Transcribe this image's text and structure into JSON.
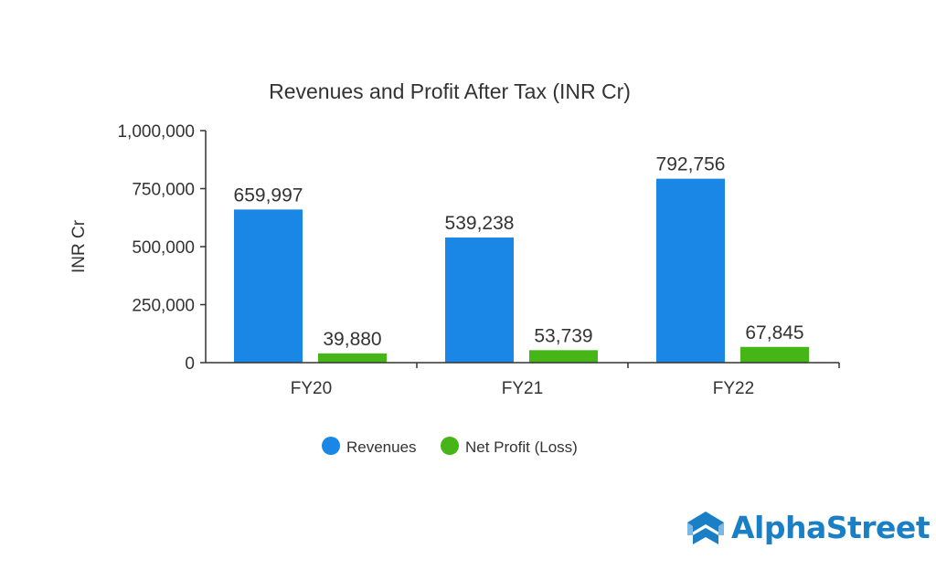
{
  "chart_data": {
    "type": "bar",
    "title": "Revenues and Profit After Tax (INR Cr)",
    "xlabel": "",
    "ylabel": "INR Cr",
    "ylim": [
      0,
      1000000
    ],
    "yticks": [
      "0",
      "250,000",
      "500,000",
      "750,000",
      "1,000,000"
    ],
    "ytick_values": [
      0,
      250000,
      500000,
      750000,
      1000000
    ],
    "categories": [
      "FY20",
      "FY21",
      "FY22"
    ],
    "series": [
      {
        "name": "Revenues",
        "color": "#1a87e6",
        "values": [
          659997,
          539238,
          792756
        ],
        "labels": [
          "659,997",
          "539,238",
          "792,756"
        ]
      },
      {
        "name": "Net Profit (Loss)",
        "color": "#45b518",
        "values": [
          39880,
          53739,
          67845
        ],
        "labels": [
          "39,880",
          "53,739",
          "67,845"
        ]
      }
    ],
    "legend_position": "bottom",
    "grid": false
  },
  "branding": {
    "logo_text": "AlphaStreet",
    "logo_color": "#1a7fc4"
  }
}
